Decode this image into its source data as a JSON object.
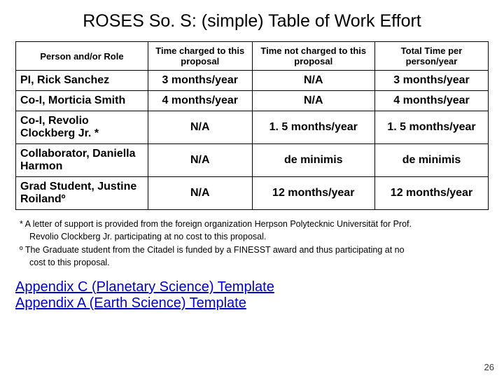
{
  "title": "ROSES So. S: (simple) Table of Work Effort",
  "table": {
    "headers": {
      "c0": "Person and/or Role",
      "c1": "Time charged to this proposal",
      "c2": "Time not charged to this proposal",
      "c3": "Total Time per person/year"
    },
    "rows": [
      {
        "role": "PI, Rick Sanchez",
        "charged": "3 months/year",
        "not_charged": "N/A",
        "total": "3 months/year"
      },
      {
        "role": "Co-I, Morticia Smith",
        "charged": "4 months/year",
        "not_charged": "N/A",
        "total": "4 months/year"
      },
      {
        "role": "Co-I, Revolio Clockberg Jr. *",
        "charged": "N/A",
        "not_charged": "1. 5 months/year",
        "total": "1. 5 months/year"
      },
      {
        "role": "Collaborator, Daniella Harmon",
        "charged": "N/A",
        "not_charged": "de minimis",
        "total": "de minimis"
      },
      {
        "role": "Grad Student, Justine Roilandº",
        "charged": "N/A",
        "not_charged": "12 months/year",
        "total": "12 months/year"
      }
    ]
  },
  "footnotes": {
    "line1": "* A letter of support is provided from the foreign organization Herpson Polytecknic Universität for Prof.",
    "line2": "Revolio Clockberg Jr. participating at no cost to this proposal.",
    "line3": "º The Graduate student from the Citadel is funded by a FINESST award and thus participating at no",
    "line4": "cost to this proposal."
  },
  "links": {
    "a": "Appendix C (Planetary Science) Template",
    "b": "Appendix A (Earth Science) Template"
  },
  "page_number": "26"
}
